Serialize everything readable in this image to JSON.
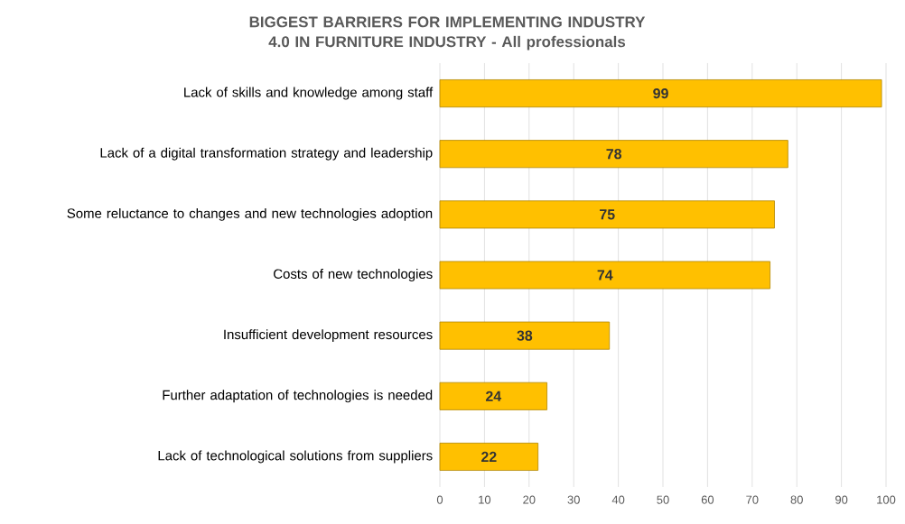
{
  "chart_data": {
    "type": "bar",
    "orientation": "horizontal",
    "title": "BIGGEST BARRIERS FOR IMPLEMENTING INDUSTRY 4.0 IN FURNITURE INDUSTRY - All professionals",
    "categories": [
      "Lack of skills and knowledge among staff",
      "Lack of a digital transformation strategy and leadership",
      "Some reluctance to changes and new technologies adoption",
      "Costs of new technologies",
      "Insufficient development resources",
      "Further adaptation of technologies is needed",
      "Lack of technological solutions from suppliers"
    ],
    "values": [
      99,
      78,
      75,
      74,
      38,
      24,
      22
    ],
    "color": "#ffc000",
    "xlim": [
      0,
      100
    ],
    "xticks": [
      0,
      10,
      20,
      30,
      40,
      50,
      60,
      70,
      80,
      90,
      100
    ],
    "grid": "x",
    "data_labels": true
  }
}
